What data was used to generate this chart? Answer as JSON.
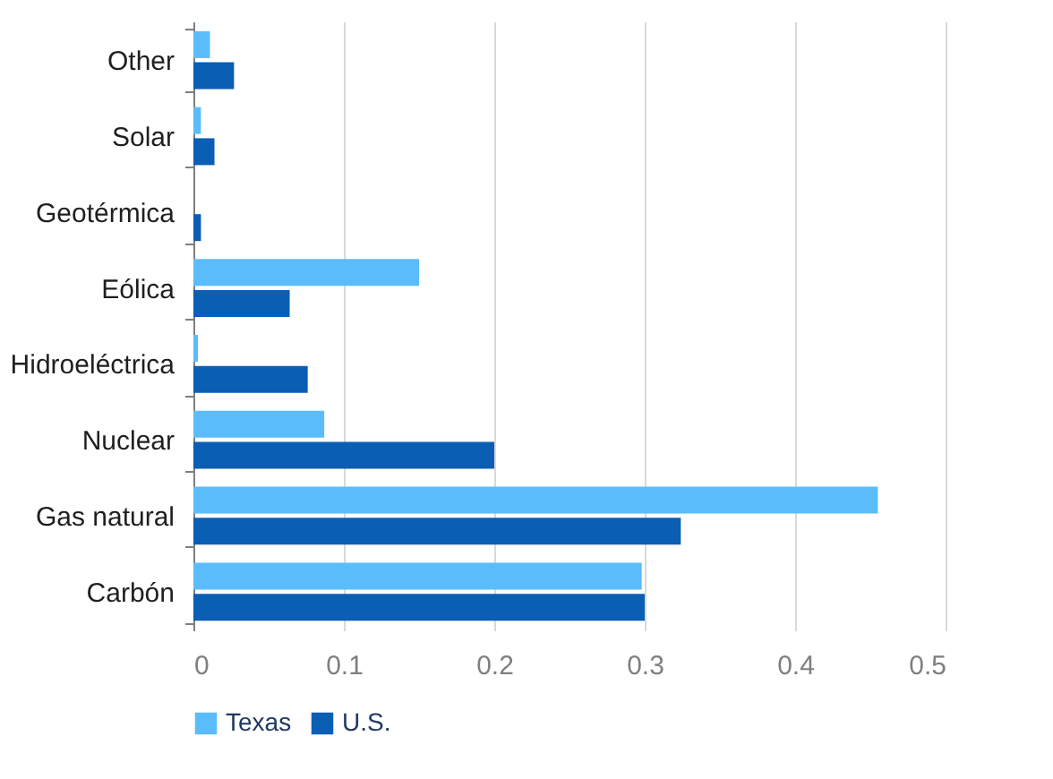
{
  "chart_data": {
    "type": "bar",
    "orientation": "horizontal",
    "categories": [
      "Other",
      "Solar",
      "Geotérmica",
      "Eólica",
      "Hidroeléctrica",
      "Nuclear",
      "Gas natural",
      "Carbón"
    ],
    "series": [
      {
        "name": "Texas",
        "color": "#5bbcfb",
        "values": [
          0.011,
          0.005,
          0,
          0.15,
          0.003,
          0.087,
          0.455,
          0.298
        ]
      },
      {
        "name": "U.S.",
        "color": "#0a5eb4",
        "values": [
          0.027,
          0.014,
          0.005,
          0.064,
          0.076,
          0.2,
          0.324,
          0.3
        ]
      }
    ],
    "xlim": [
      0,
      0.5
    ],
    "xticks": [
      0,
      0.1,
      0.2,
      0.3,
      0.4,
      0.5
    ],
    "grid": "x",
    "legend": "bottom"
  }
}
